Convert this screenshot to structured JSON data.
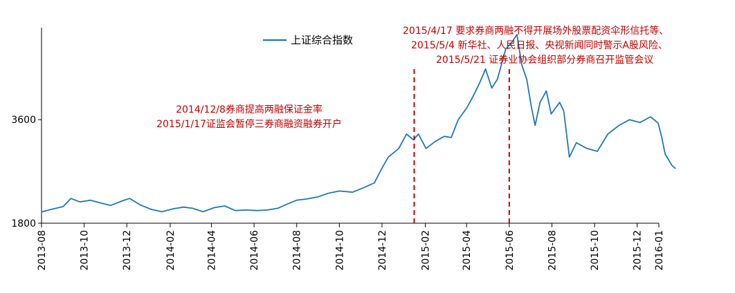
{
  "chart_data": {
    "type": "line",
    "title": "",
    "xlabel": "",
    "ylabel": "",
    "x_range": [
      "2013-08-01",
      "2016-01-01"
    ],
    "ylim": [
      1800,
      5200
    ],
    "y_ticks": [
      1800,
      3600
    ],
    "x_tick_labels": [
      "2013-08",
      "2013-10",
      "2013-12",
      "2014-02",
      "2014-04",
      "2014-06",
      "2014-08",
      "2014-10",
      "2014-12",
      "2015-02",
      "2015-04",
      "2015-06",
      "2015-08",
      "2015-10",
      "2015-12",
      "2016-01"
    ],
    "x_ticks": [
      "2013-08-01",
      "2013-10-01",
      "2013-12-01",
      "2014-02-01",
      "2014-04-01",
      "2014-06-01",
      "2014-08-01",
      "2014-10-01",
      "2014-12-01",
      "2015-02-01",
      "2015-04-01",
      "2015-06-01",
      "2015-08-01",
      "2015-10-01",
      "2015-12-01",
      "2016-01-01"
    ],
    "grid": false,
    "legend_position": "top-center",
    "series": [
      {
        "name": "上证综合指数",
        "color": "#1F77B4",
        "points": [
          [
            "2013-08-01",
            1995
          ],
          [
            "2013-08-15",
            2040
          ],
          [
            "2013-09-01",
            2090
          ],
          [
            "2013-09-12",
            2230
          ],
          [
            "2013-09-25",
            2170
          ],
          [
            "2013-10-10",
            2200
          ],
          [
            "2013-10-25",
            2150
          ],
          [
            "2013-11-08",
            2110
          ],
          [
            "2013-11-25",
            2190
          ],
          [
            "2013-12-05",
            2230
          ],
          [
            "2013-12-20",
            2120
          ],
          [
            "2014-01-05",
            2040
          ],
          [
            "2014-01-20",
            2000
          ],
          [
            "2014-02-05",
            2050
          ],
          [
            "2014-02-20",
            2080
          ],
          [
            "2014-03-05",
            2060
          ],
          [
            "2014-03-20",
            2000
          ],
          [
            "2014-04-05",
            2070
          ],
          [
            "2014-04-20",
            2100
          ],
          [
            "2014-05-05",
            2020
          ],
          [
            "2014-05-20",
            2030
          ],
          [
            "2014-06-05",
            2020
          ],
          [
            "2014-06-20",
            2030
          ],
          [
            "2014-07-05",
            2060
          ],
          [
            "2014-07-20",
            2140
          ],
          [
            "2014-08-01",
            2200
          ],
          [
            "2014-08-15",
            2220
          ],
          [
            "2014-09-01",
            2260
          ],
          [
            "2014-09-15",
            2320
          ],
          [
            "2014-10-01",
            2360
          ],
          [
            "2014-10-20",
            2340
          ],
          [
            "2014-11-05",
            2420
          ],
          [
            "2014-11-20",
            2500
          ],
          [
            "2014-12-01",
            2760
          ],
          [
            "2014-12-10",
            2950
          ],
          [
            "2014-12-25",
            3100
          ],
          [
            "2015-01-05",
            3350
          ],
          [
            "2015-01-15",
            3250
          ],
          [
            "2015-01-22",
            3350
          ],
          [
            "2015-02-02",
            3100
          ],
          [
            "2015-02-15",
            3220
          ],
          [
            "2015-02-28",
            3310
          ],
          [
            "2015-03-10",
            3290
          ],
          [
            "2015-03-20",
            3600
          ],
          [
            "2015-04-01",
            3800
          ],
          [
            "2015-04-10",
            4000
          ],
          [
            "2015-04-20",
            4250
          ],
          [
            "2015-04-28",
            4480
          ],
          [
            "2015-05-07",
            4150
          ],
          [
            "2015-05-15",
            4300
          ],
          [
            "2015-05-27",
            4830
          ],
          [
            "2015-06-05",
            4950
          ],
          [
            "2015-06-12",
            5080
          ],
          [
            "2015-06-19",
            4550
          ],
          [
            "2015-06-26",
            4300
          ],
          [
            "2015-07-03",
            3800
          ],
          [
            "2015-07-08",
            3500
          ],
          [
            "2015-07-15",
            3900
          ],
          [
            "2015-07-24",
            4100
          ],
          [
            "2015-07-31",
            3700
          ],
          [
            "2015-08-12",
            3900
          ],
          [
            "2015-08-18",
            3750
          ],
          [
            "2015-08-26",
            2950
          ],
          [
            "2015-09-05",
            3200
          ],
          [
            "2015-09-20",
            3100
          ],
          [
            "2015-10-05",
            3050
          ],
          [
            "2015-10-20",
            3350
          ],
          [
            "2015-11-05",
            3500
          ],
          [
            "2015-11-20",
            3600
          ],
          [
            "2015-12-05",
            3550
          ],
          [
            "2015-12-20",
            3650
          ],
          [
            "2015-12-31",
            3540
          ],
          [
            "2016-01-05",
            3300
          ],
          [
            "2016-01-10",
            3000
          ],
          [
            "2016-01-15",
            2900
          ],
          [
            "2016-01-20",
            2800
          ],
          [
            "2016-01-25",
            2750
          ]
        ]
      }
    ],
    "event_lines": [
      {
        "date": "2015-01-16",
        "color": "#C00000"
      },
      {
        "date": "2015-06-01",
        "color": "#C00000"
      }
    ],
    "annotations": [
      {
        "id": "left",
        "lines": [
          "2014/12/8券商提高两融保证金率",
          "2015/1/17证监会暂停三券商融资融券开户"
        ]
      },
      {
        "id": "right",
        "lines": [
          "2015/4/17  要求券商两融不得开展场外股票配资伞形信托等、",
          "2015/5/4  新华社、人民日报、央视新闻同时警示A股风险、",
          "2015/5/21  证券业协会组织部分券商召开监管会议"
        ]
      }
    ]
  }
}
